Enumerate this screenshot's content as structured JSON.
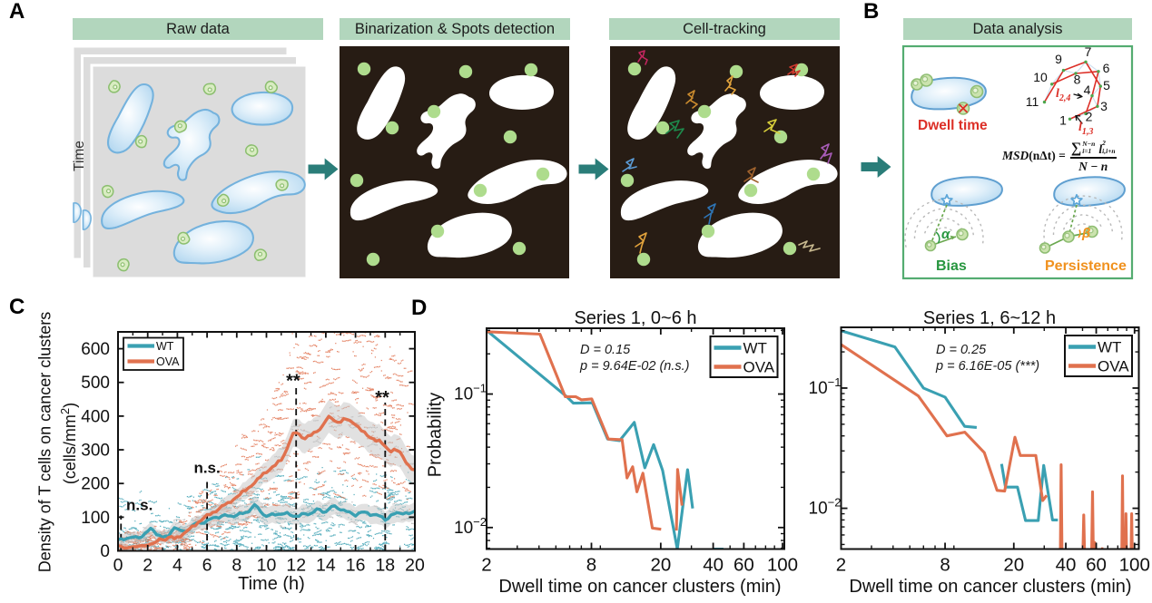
{
  "colors": {
    "teal": "#3AA0B2",
    "orange": "#E0714E",
    "banner_green": "#B2D6BD",
    "arrow_teal": "#2A7D79",
    "panel_dark": "#271C14",
    "spot_green": "#AEDC8D",
    "box_green": "#54AC71",
    "red": "#DC2F27",
    "bias_green": "#27963F",
    "persistence_orange": "#F0911E",
    "band_gray": "#C8C8C8"
  },
  "panel_labels": {
    "a": "A",
    "b": "B",
    "c": "C",
    "d": "D"
  },
  "panel_a": {
    "steps": [
      {
        "title": "Raw data"
      },
      {
        "title": "Binarization & Spots detection"
      },
      {
        "title": "Cell-tracking"
      }
    ],
    "time_axis_label": "Time"
  },
  "panel_b": {
    "title": "Data analysis",
    "dwell_time_label": "Dwell time",
    "bias_label": "Bias",
    "bias_angle": "α",
    "persistence_label": "Persistence",
    "persistence_angle": "β",
    "track_point_numbers": [
      "1",
      "2",
      "3",
      "4",
      "5",
      "6",
      "7",
      "8",
      "9",
      "10",
      "11"
    ],
    "segment_label_24": {
      "base": "l",
      "sub": "2,4"
    },
    "segment_label_13": {
      "base": "l",
      "sub": "1,3"
    },
    "msd_formula": {
      "lhs_fn": "MSD",
      "lhs_arg": "(nΔt) =",
      "sigma": "∑",
      "sigma_sup": "N−n",
      "sigma_sub": "i=1",
      "term_base": "l",
      "term_sup": "2",
      "term_sub": "i,i+n",
      "denominator": "N − n"
    }
  },
  "chart_data": [
    {
      "id": "C",
      "type": "line",
      "xlabel": "Time (h)",
      "ylabel_line1": "Density of T cells on cancer clusters",
      "ylabel_line2_pre": "(cells/mm",
      "ylabel_line2_sup": "2",
      "ylabel_line2_post": ")",
      "xlim": [
        0,
        20
      ],
      "ylim": [
        0,
        650
      ],
      "xticks": [
        0,
        2,
        4,
        6,
        8,
        10,
        12,
        14,
        16,
        18,
        20
      ],
      "yticks": [
        0,
        100,
        200,
        300,
        400,
        500,
        600
      ],
      "x": [
        0.0,
        0.2,
        0.4,
        0.6,
        0.8,
        1.0,
        1.2,
        1.4,
        1.6,
        1.8,
        2.0,
        2.2,
        2.4,
        2.6,
        2.8,
        3.0,
        3.2,
        3.4,
        3.6,
        3.8,
        4.0,
        4.2,
        4.4,
        4.6,
        4.8,
        5.0,
        5.2,
        5.4,
        5.6,
        5.8,
        6.0,
        6.2,
        6.4,
        6.6,
        6.8,
        7.0,
        7.2,
        7.4,
        7.6,
        7.8,
        8.0,
        8.2,
        8.4,
        8.6,
        8.8,
        9.0,
        9.2,
        9.4,
        9.6,
        9.8,
        10.0,
        10.2,
        10.4,
        10.6,
        10.8,
        11.0,
        11.2,
        11.4,
        11.6,
        11.8,
        12.0,
        12.2,
        12.4,
        12.6,
        12.8,
        13.0,
        13.2,
        13.4,
        13.6,
        13.8,
        14.0,
        14.2,
        14.4,
        14.6,
        14.8,
        15.0,
        15.2,
        15.4,
        15.6,
        15.8,
        16.0,
        16.2,
        16.4,
        16.6,
        16.8,
        17.0,
        17.2,
        17.4,
        17.6,
        17.8,
        18.0,
        18.2,
        18.4,
        18.6,
        18.8,
        19.0,
        19.2,
        19.4,
        19.6,
        19.8,
        20.0
      ],
      "series": [
        {
          "name": "WT",
          "color": "#3AA0B2",
          "values": [
            33.4,
            35.9,
            32.6,
            36.8,
            38.9,
            40.5,
            42.3,
            38.4,
            41.3,
            51.0,
            58.2,
            66.9,
            60.1,
            47.8,
            46.4,
            40.3,
            43.9,
            43.5,
            57.2,
            68.7,
            65.4,
            61.5,
            58.7,
            57.2,
            63.4,
            75.4,
            81.0,
            84.4,
            82.1,
            81.7,
            90.3,
            94.3,
            98.3,
            99.5,
            97.2,
            103.7,
            107.3,
            103.8,
            103.6,
            101.1,
            105.5,
            112.8,
            110.6,
            114.0,
            115.8,
            126.8,
            137.2,
            130.1,
            116.9,
            107.0,
            102.5,
            106.2,
            109.9,
            106.4,
            108.5,
            108.4,
            110.0,
            114.0,
            106.3,
            102.9,
            103.2,
            102.7,
            111.0,
            110.3,
            107.1,
            111.2,
            115.7,
            124.9,
            122.6,
            114.1,
            115.4,
            123.7,
            132.1,
            133.7,
            125.7,
            121.2,
            121.6,
            116.9,
            115.7,
            109.8,
            103.4,
            111.5,
            114.9,
            115.3,
            113.7,
            105.3,
            107.0,
            107.6,
            104.1,
            100.9,
            90.6,
            95.9,
            106.9,
            109.2,
            113.7,
            111.6,
            109.5,
            113.2,
            110.4,
            113.6,
            118.1
          ],
          "band_halfwidth": [
            16.0,
            17.2,
            17.8,
            17.3,
            16.3,
            15.4,
            15.3,
            16.2,
            17.5,
            18.5,
            18.7,
            18.1,
            17.0,
            16.3,
            16.5,
            17.6,
            19.1,
            20.0,
            20.0,
            19.3,
            18.4,
            18.1,
            18.8,
            20.1,
            21.5,
            22.2,
            21.9,
            21.0,
            20.2,
            20.3,
            21.2,
            22.7,
            23.8,
            24.2,
            23.6,
            22.6,
            22.1,
            22.4,
            23.6,
            25.1,
            26.0,
            26.0,
            25.2,
            24.3,
            24.0,
            24.7,
            26.0,
            27.4,
            28.0,
            27.7,
            26.8,
            25.7,
            25.4,
            26.0,
            27.1,
            27.9,
            27.9,
            27.0,
            25.7,
            24.9,
            24.9,
            25.8,
            26.9,
            27.4,
            27.1,
            26.0,
            24.7,
            24.1,
            24.5,
            25.5,
            26.5,
            26.8,
            26.1,
            24.9,
            23.8,
            23.5,
            24.3,
            25.6,
            26.6,
            26.7,
            25.9,
            24.8,
            24.1,
            24.3,
            25.4,
            26.6,
            27.4,
            27.2,
            26.2,
            25.1,
            24.7,
            25.2,
            26.4,
            27.6,
            28.0,
            27.5,
            26.4,
            25.5,
            25.4,
            26.2,
            27.5
          ]
        },
        {
          "name": "OVA",
          "color": "#E0714E",
          "values": [
            16.0,
            13.7,
            8.5,
            8.6,
            11.0,
            12.0,
            11.8,
            14.0,
            16.2,
            15.4,
            16.1,
            20.5,
            22.5,
            27.8,
            36.1,
            33.2,
            31.4,
            39.7,
            42.5,
            36.0,
            42.0,
            41.1,
            50.4,
            57.4,
            64.7,
            73.7,
            74.4,
            84.6,
            89.9,
            98.9,
            107.6,
            107.3,
            114.4,
            115.7,
            124.3,
            133.8,
            136.6,
            143.4,
            143.9,
            152.9,
            159.8,
            166.4,
            178.1,
            178.9,
            187.5,
            192.7,
            201.2,
            213.9,
            219.7,
            230.7,
            232.3,
            240.0,
            249.1,
            254.2,
            267.0,
            268.9,
            285.0,
            304.5,
            327.9,
            349.2,
            350.4,
            346.6,
            335.8,
            332.8,
            341.7,
            343.0,
            351.9,
            353.8,
            360.4,
            372.9,
            386.5,
            399.4,
            393.1,
            385.5,
            381.6,
            381.7,
            392.4,
            390.2,
            387.4,
            380.8,
            373.9,
            367.7,
            356.3,
            353.4,
            341.7,
            335.7,
            332.8,
            325.6,
            328.7,
            318.7,
            310.2,
            301.0,
            293.6,
            301.6,
            297.8,
            293.7,
            279.1,
            262.1,
            253.2,
            242.0,
            240.5
          ],
          "band_halfwidth": [
            7.0,
            8.1,
            8.8,
            8.6,
            7.8,
            6.9,
            6.4,
            6.6,
            7.5,
            8.8,
            9.7,
            9.9,
            9.4,
            8.4,
            7.7,
            7.5,
            8.5,
            10.0,
            11.4,
            12.4,
            12.5,
            12.1,
            11.5,
            11.3,
            11.9,
            13.2,
            14.7,
            16.0,
            16.5,
            16.3,
            15.7,
            15.5,
            16.0,
            17.2,
            19.0,
            20.7,
            21.9,
            22.3,
            22.1,
            21.8,
            21.9,
            22.7,
            24.3,
            26.1,
            27.6,
            28.4,
            28.7,
            28.7,
            28.8,
            29.5,
            31.0,
            33.1,
            35.1,
            36.5,
            37.2,
            37.2,
            37.2,
            37.5,
            38.7,
            40.5,
            42.6,
            43.9,
            44.5,
            44.3,
            43.8,
            43.4,
            43.7,
            44.8,
            46.3,
            47.9,
            48.8,
            49.0,
            48.6,
            48.1,
            48.0,
            48.7,
            49.3,
            50.2,
            50.8,
            50.6,
            49.7,
            48.4,
            47.3,
            46.9,
            47.3,
            48.1,
            48.9,
            49.1,
            48.5,
            47.4,
            46.1,
            45.1,
            44.9,
            45.4,
            46.0,
            46.4,
            46.0,
            44.9,
            43.4,
            42.1,
            41.5
          ]
        }
      ],
      "dashed_lines": [
        {
          "x": 0.2,
          "ytop": 105
        },
        {
          "x": 6,
          "ytop": 212
        },
        {
          "x": 12,
          "ytop": 495
        },
        {
          "x": 18,
          "ytop": 440
        }
      ],
      "annotations": [
        {
          "text": "n.s.",
          "x": 1.45,
          "y": 121
        },
        {
          "text": "n.s.",
          "x": 6.0,
          "y": 232
        },
        {
          "text": "**",
          "x": 11.8,
          "y": 487
        },
        {
          "text": "**",
          "x": 17.8,
          "y": 438
        }
      ],
      "legend": [
        "WT",
        "OVA"
      ],
      "scatter": {
        "seed": 20240613,
        "wt_streaks": 560,
        "ova_streaks": 620,
        "gray_streaks": 150
      }
    },
    {
      "id": "D1",
      "type": "loglog-line",
      "title": "Series 1, 0~6 h",
      "stats_d": "D = 0.15",
      "stats_p": "p = 9.64E-02 (n.s.)",
      "xlabel": "Dwell time on cancer clusters (min)",
      "ylabel": "Probability",
      "xlim": [
        2,
        102.5
      ],
      "ylim": [
        0.0069,
        0.311
      ],
      "xticks": [
        2,
        8,
        20,
        40,
        60,
        100
      ],
      "yticks": [
        0.1,
        0.01
      ],
      "legend": [
        "WT",
        "OVA"
      ],
      "series": [
        {
          "name": "WT",
          "color": "#3AA0B2",
          "points": [
            [
              2,
              0.3
            ],
            [
              5.8,
              0.095
            ],
            [
              6.3,
              0.0855
            ],
            [
              8.1,
              0.086
            ],
            [
              9.9,
              0.046
            ],
            [
              11.6,
              0.0447
            ],
            [
              14.1,
              0.0613
            ],
            [
              16.2,
              0.028
            ],
            [
              18.2,
              0.0418
            ],
            [
              20.5,
              0.0268
            ],
            [
              24.9,
              0.0069
            ],
            [
              28.5,
              0.0271
            ],
            [
              30.5,
              0.0139
            ],
            null,
            [
              40.3,
              0.0069
            ],
            [
              45.8,
              0.0069
            ]
          ]
        },
        {
          "name": "OVA",
          "color": "#E0714E",
          "points": [
            [
              2,
              0.293
            ],
            [
              4.05,
              0.281
            ],
            [
              5.66,
              0.0955
            ],
            [
              6.5,
              0.0955
            ],
            [
              7.0,
              0.0905
            ],
            [
              8.03,
              0.092
            ],
            [
              10,
              0.046
            ],
            [
              12,
              0.0455
            ],
            [
              12.8,
              0.0235
            ],
            [
              13.8,
              0.0285
            ],
            [
              14.6,
              0.0185
            ],
            [
              15.8,
              0.0255
            ],
            [
              17.9,
              0.0099
            ],
            [
              20.1,
              0.0097
            ],
            null,
            [
              24.6,
              0.0095
            ],
            [
              25.0,
              0.0272
            ],
            [
              26.5,
              0.0146
            ]
          ]
        }
      ]
    },
    {
      "id": "D2",
      "type": "loglog-line",
      "title": "Series 1, 6~12 h",
      "stats_d": "D = 0.25",
      "stats_p": "p = 6.16E-05 (***)",
      "xlabel": "Dwell time on cancer clusters (min)",
      "ylabel": "",
      "xlim": [
        2,
        105.9
      ],
      "ylim": [
        0.00458,
        0.32
      ],
      "xticks": [
        2,
        8,
        20,
        40,
        60,
        100
      ],
      "yticks": [
        0.1,
        0.01
      ],
      "legend": [
        "WT",
        "OVA"
      ],
      "series": [
        {
          "name": "WT",
          "color": "#3AA0B2",
          "points": [
            [
              2,
              0.3
            ],
            [
              4.1,
              0.22
            ],
            [
              6,
              0.1
            ],
            [
              8,
              0.084
            ],
            [
              10.4,
              0.048
            ],
            [
              12.2,
              0.047
            ],
            null,
            [
              17,
              0.0234
            ],
            [
              17.9,
              0.015
            ],
            [
              21,
              0.015
            ],
            [
              23.4,
              0.0079
            ],
            [
              27.7,
              0.0079
            ],
            [
              29.8,
              0.0227
            ],
            [
              33.5,
              0.008
            ],
            [
              36,
              0.008
            ]
          ]
        },
        {
          "name": "OVA",
          "color": "#E0714E",
          "points": [
            [
              2,
              0.23
            ],
            [
              5.6,
              0.086
            ],
            [
              8.2,
              0.04
            ],
            [
              10.4,
              0.043
            ],
            [
              13.5,
              0.029
            ],
            [
              16,
              0.0141
            ],
            [
              17.7,
              0.0139
            ],
            [
              20.3,
              0.039
            ],
            [
              21.8,
              0.0275
            ],
            [
              26.8,
              0.0275
            ],
            [
              29.4,
              0.0116
            ],
            [
              31,
              0.0128
            ],
            null,
            [
              37.2,
              0.0046
            ],
            [
              37.6,
              0.023
            ],
            [
              38.0,
              0.0046
            ],
            null,
            [
              50.3,
              0.0046
            ],
            [
              50.8,
              0.0088
            ],
            [
              51.3,
              0.0046
            ],
            null,
            [
              56.5,
              0.0046
            ],
            [
              57.1,
              0.0137
            ],
            [
              57.7,
              0.0046
            ],
            [
              58.8,
              0.0052
            ],
            [
              59.3,
              0.0046
            ],
            null,
            [
              64,
              0.0046
            ],
            [
              66,
              0.0046
            ],
            null,
            [
              84.5,
              0.0046
            ],
            [
              85.2,
              0.0186
            ],
            [
              85.9,
              0.0046
            ],
            null,
            [
              88.6,
              0.0046
            ],
            [
              89.2,
              0.009
            ],
            [
              89.8,
              0.0046
            ],
            null,
            [
              95.6,
              0.0046
            ],
            [
              96.3,
              0.009
            ],
            [
              97.0,
              0.0046
            ]
          ]
        }
      ]
    }
  ]
}
